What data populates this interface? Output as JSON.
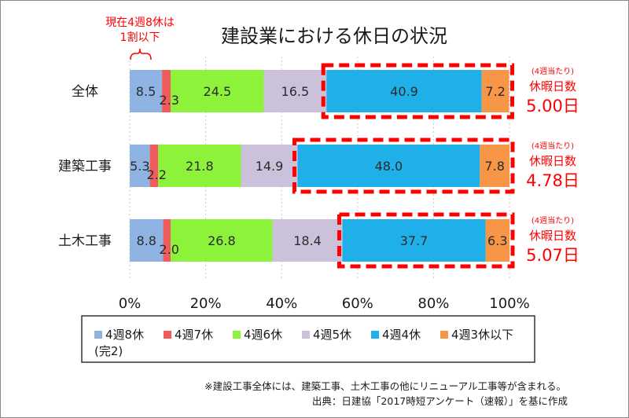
{
  "chart_data": {
    "type": "bar",
    "orientation": "horizontal",
    "stacked": "percent",
    "title": "建設業における休日の状況",
    "categories": [
      "全体",
      "建築工事",
      "土木工事"
    ],
    "series": [
      {
        "name": "4週8休",
        "values": [
          8.5,
          5.3,
          8.8
        ],
        "color": "#8fb4e3"
      },
      {
        "name": "4週7休",
        "values": [
          2.3,
          2.2,
          2.0
        ],
        "color": "#f05c5c"
      },
      {
        "name": "4週6休",
        "values": [
          24.5,
          21.8,
          26.8
        ],
        "color": "#8cf23a"
      },
      {
        "name": "4週5休",
        "values": [
          16.5,
          14.9,
          18.4
        ],
        "color": "#ccc1da"
      },
      {
        "name": "4週4休",
        "values": [
          40.9,
          48.0,
          37.7
        ],
        "color": "#1fb0ea"
      },
      {
        "name": "4週3休以下",
        "values": [
          7.2,
          7.8,
          6.3
        ],
        "color": "#f79646"
      }
    ],
    "label_texts": [
      [
        "8.5",
        "2.3",
        "24.5",
        "16.5",
        "40.9",
        "7.2"
      ],
      [
        "5.3",
        "2.2",
        "21.8",
        "14.9",
        "48.0",
        "7.8"
      ],
      [
        "8.8",
        "2.0",
        "26.8",
        "18.4",
        "37.7",
        "6.3"
      ]
    ],
    "xlim": [
      0,
      100
    ],
    "xticks": [
      "0%",
      "20%",
      "40%",
      "60%",
      "80%",
      "100%"
    ],
    "grid": true,
    "legend_position": "bottom",
    "legend_note": "(完2)",
    "annotations": {
      "top_note": [
        "現在4週8休は",
        "1割以下"
      ],
      "per_category": [
        {
          "heading": "(4週当たり)",
          "label": "休暇日数",
          "value": "5.00日"
        },
        {
          "heading": "(4週当たり)",
          "label": "休暇日数",
          "value": "4.78日"
        },
        {
          "heading": "(4週当たり)",
          "label": "休暇日数",
          "value": "5.07日"
        }
      ]
    },
    "footnotes": [
      "※建設工事全体には、建築工事、土木工事の他にリニューアル工事等が含まれる。",
      "出典：日建協「2017時短アンケート（速報）」を基に作成"
    ]
  }
}
